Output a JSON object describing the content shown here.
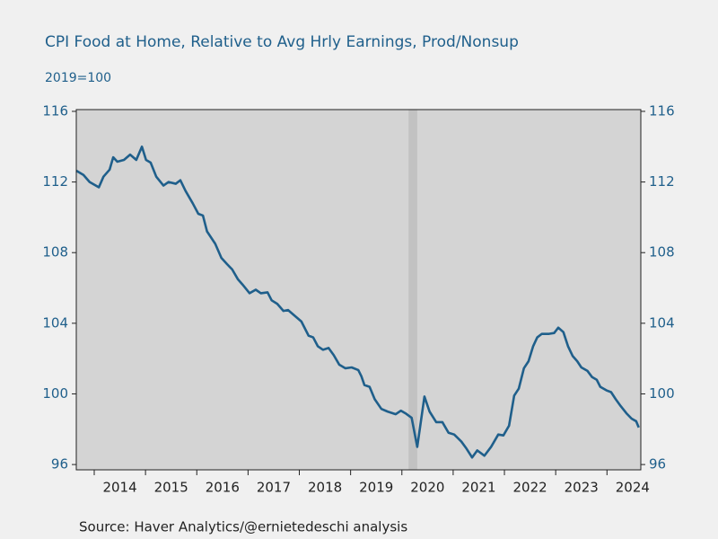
{
  "chart_data": {
    "type": "line",
    "title": "CPI Food at Home, Relative to Avg Hrly Earnings, Prod/Nonsup",
    "subtitle": "2019=100",
    "source": "Source:  Haver Analytics/@ernietedeschi analysis",
    "color": "#1f5f8b",
    "shaded_regions": [
      {
        "start": 2020.13,
        "end": 2020.3
      }
    ],
    "xlim": [
      2013.65,
      2024.66
    ],
    "xticks": [
      2014,
      2015,
      2016,
      2017,
      2018,
      2019,
      2020,
      2021,
      2022,
      2023,
      2024
    ],
    "ylim": [
      95.7,
      116.1
    ],
    "yticks": [
      96,
      100,
      104,
      108,
      112,
      116
    ],
    "y2lim": [
      95.7,
      116.1
    ],
    "y2ticks": [
      96,
      100,
      104,
      108,
      112,
      116
    ],
    "x": [
      2013.65,
      2013.79,
      2013.91,
      2014.09,
      2014.18,
      2014.3,
      2014.37,
      2014.45,
      2014.58,
      2014.7,
      2014.82,
      2014.93,
      2015.01,
      2015.1,
      2015.21,
      2015.35,
      2015.45,
      2015.59,
      2015.68,
      2015.78,
      2015.92,
      2016.03,
      2016.12,
      2016.2,
      2016.36,
      2016.48,
      2016.59,
      2016.69,
      2016.8,
      2016.89,
      2017.03,
      2017.15,
      2017.25,
      2017.38,
      2017.46,
      2017.57,
      2017.69,
      2017.78,
      2017.92,
      2018.04,
      2018.18,
      2018.27,
      2018.36,
      2018.46,
      2018.57,
      2018.67,
      2018.78,
      2018.9,
      2019.02,
      2019.15,
      2019.21,
      2019.27,
      2019.37,
      2019.47,
      2019.6,
      2019.72,
      2019.88,
      2019.98,
      2020.07,
      2020.19,
      2020.3,
      2020.44,
      2020.54,
      2020.67,
      2020.79,
      2020.91,
      2021.02,
      2021.16,
      2021.26,
      2021.37,
      2021.47,
      2021.61,
      2021.74,
      2021.88,
      2021.98,
      2022.09,
      2022.19,
      2022.28,
      2022.38,
      2022.47,
      2022.56,
      2022.64,
      2022.73,
      2022.87,
      2022.97,
      2023.05,
      2023.15,
      2023.24,
      2023.33,
      2023.42,
      2023.5,
      2023.62,
      2023.71,
      2023.8,
      2023.87,
      2023.99,
      2024.08,
      2024.17,
      2024.27,
      2024.38,
      2024.48,
      2024.57,
      2024.62
    ],
    "values": [
      112.64,
      112.4,
      112.0,
      111.7,
      112.3,
      112.7,
      113.4,
      113.15,
      113.25,
      113.55,
      113.25,
      114.0,
      113.25,
      113.1,
      112.3,
      111.8,
      112.0,
      111.9,
      112.1,
      111.5,
      110.8,
      110.2,
      110.1,
      109.2,
      108.5,
      107.7,
      107.35,
      107.05,
      106.5,
      106.2,
      105.7,
      105.9,
      105.7,
      105.75,
      105.3,
      105.1,
      104.7,
      104.75,
      104.4,
      104.1,
      103.3,
      103.2,
      102.7,
      102.5,
      102.6,
      102.2,
      101.65,
      101.45,
      101.5,
      101.35,
      101.0,
      100.5,
      100.4,
      99.7,
      99.15,
      99.0,
      98.85,
      99.05,
      98.9,
      98.65,
      97.0,
      99.85,
      99.0,
      98.4,
      98.4,
      97.8,
      97.7,
      97.3,
      96.9,
      96.4,
      96.8,
      96.5,
      97.0,
      97.7,
      97.65,
      98.2,
      99.9,
      100.3,
      101.45,
      101.85,
      102.7,
      103.2,
      103.4,
      103.4,
      103.45,
      103.75,
      103.5,
      102.7,
      102.15,
      101.85,
      101.5,
      101.3,
      100.95,
      100.8,
      100.4,
      100.2,
      100.1,
      99.7,
      99.3,
      98.9,
      98.6,
      98.45,
      98.1
    ]
  }
}
